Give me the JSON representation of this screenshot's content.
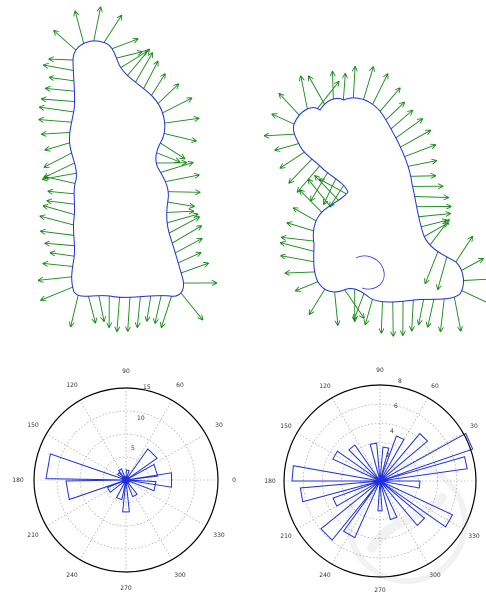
{
  "colors": {
    "outline": "#1f2fe0",
    "arrows": "#138a13",
    "rose": "#1f2fe0",
    "circle": "#000000",
    "grid": "#9a9a9a",
    "watermark": "#888888"
  },
  "icons": {
    "watermark": "stamp-watermark-icon"
  },
  "rose_left": {
    "angle_labels": [
      "0",
      "30",
      "60",
      "90",
      "120",
      "150",
      "180",
      "210",
      "240",
      "270",
      "300",
      "330"
    ],
    "radius_labels": [
      "5",
      "10",
      "15"
    ]
  },
  "rose_right": {
    "angle_labels": [
      "30",
      "60",
      "90",
      "120",
      "150",
      "180",
      "210",
      "240",
      "270",
      "300",
      "330"
    ],
    "radius_labels": [
      "2",
      "4",
      "6",
      "8"
    ]
  }
}
